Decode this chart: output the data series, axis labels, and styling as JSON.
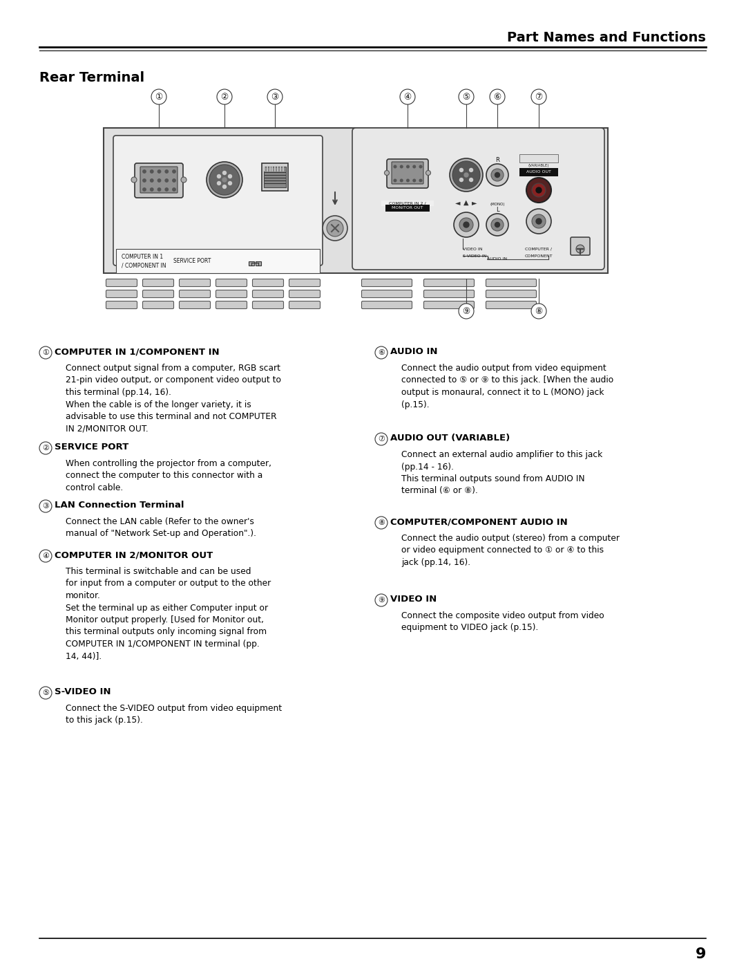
{
  "page_title": "Part Names and Functions",
  "section_title": "Rear Terminal",
  "page_number": "9",
  "bg_color": "#ffffff",
  "items_left": [
    {
      "num": "①",
      "title": "COMPUTER IN 1/COMPONENT IN",
      "title_bold": true,
      "body": "Connect output signal from a computer, RGB scart\n21-pin video output, or component video output to\nthis terminal (pp.14, 16).\nWhen the cable is of the longer variety, it is\nadvisable to use this terminal and not COMPUTER\nIN 2/MONITOR OUT."
    },
    {
      "num": "②",
      "title": "SERVICE PORT",
      "title_bold": true,
      "body": "When controlling the projector from a computer,\nconnect the computer to this connector with a\ncontrol cable."
    },
    {
      "num": "③",
      "title": "LAN Connection Terminal",
      "title_bold": true,
      "body": "Connect the LAN cable (Refer to the owner's\nmanual of \"Network Set-up and Operation\".)."
    },
    {
      "num": "④",
      "title": "COMPUTER IN 2/MONITOR OUT",
      "title_bold": true,
      "body": "This terminal is switchable and can be used\nfor input from a computer or output to the other\nmonitor.\nSet the terminal up as either Computer input or\nMonitor output properly. [Used for Monitor out,\nthis terminal outputs only incoming signal from\nCOMPUTER IN 1/COMPONENT IN terminal (pp.\n14, 44)]."
    },
    {
      "num": "⑤",
      "title": "S-VIDEO IN",
      "title_bold": true,
      "body": "Connect the S-VIDEO output from video equipment\nto this jack (p.15)."
    }
  ],
  "items_right": [
    {
      "num": "⑥",
      "title": "AUDIO IN",
      "title_bold": true,
      "body": "Connect the audio output from video equipment\nconnected to ⑤ or ⑨ to this jack. [When the audio\noutput is monaural, connect it to L (MONO) jack\n(p.15)."
    },
    {
      "num": "⑦",
      "title": "AUDIO OUT (VARIABLE)",
      "title_bold": true,
      "body": "Connect an external audio amplifier to this jack\n(pp.14 - 16).\nThis terminal outputs sound from AUDIO IN\nterminal (⑥ or ⑧)."
    },
    {
      "num": "⑧",
      "title": "COMPUTER/COMPONENT AUDIO IN",
      "title_bold": true,
      "body": "Connect the audio output (stereo) from a computer\nor video equipment connected to ① or ④ to this\njack (pp.14, 16)."
    },
    {
      "num": "⑨",
      "title": "VIDEO IN",
      "title_bold": true,
      "body": "Connect the composite video output from video\nequipment to VIDEO jack (p.15)."
    }
  ]
}
